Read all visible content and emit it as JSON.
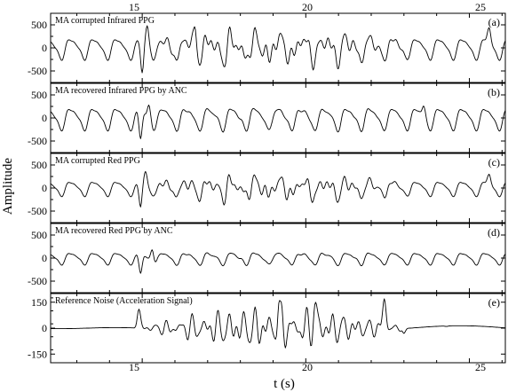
{
  "chart_data": {
    "type": "line",
    "xlabel": "t (s)",
    "ylabel": "Amplitude",
    "x_range": [
      12.2,
      26.1
    ],
    "x_ticks": [
      15,
      20,
      25
    ],
    "x_tick_labels": [
      "15",
      "20",
      "25"
    ],
    "grid": false,
    "legend": "none",
    "panels": [
      {
        "id": "a",
        "title": "MA corrupted Infrared PPG",
        "tag": "(a)",
        "ylim": [
          -750,
          750
        ],
        "y_ticks": [
          -500,
          0,
          500
        ],
        "y_tick_labels": [
          "-500",
          "0",
          "500"
        ],
        "signal": {
          "sample_rate_hz": 40,
          "hr_hz": 1.42,
          "ppg_amp": 230,
          "ma_amp": 260,
          "noisy": true,
          "seed": 7
        },
        "features": [
          {
            "t": 15.0,
            "y": -550
          },
          {
            "t": 15.15,
            "y": 480
          },
          {
            "t": 16.6,
            "y": 460
          },
          {
            "t": 25.6,
            "y": 440
          }
        ]
      },
      {
        "id": "b",
        "title": "MA recovered Infrared PPG by ANC",
        "tag": "(b)",
        "ylim": [
          -750,
          750
        ],
        "y_ticks": [
          -500,
          0,
          500
        ],
        "y_tick_labels": [
          "-500",
          "0",
          "500"
        ],
        "signal": {
          "sample_rate_hz": 40,
          "hr_hz": 1.42,
          "ppg_amp": 240,
          "ma_amp": 40,
          "noisy": false,
          "seed": 11
        },
        "features": [
          {
            "t": 14.95,
            "y": -450
          },
          {
            "t": 15.2,
            "y": 280
          },
          {
            "t": 23.6,
            "y": 260
          }
        ]
      },
      {
        "id": "c",
        "title": "MA corrupted Red PPG",
        "tag": "(c)",
        "ylim": [
          -750,
          750
        ],
        "y_ticks": [
          -500,
          0,
          500
        ],
        "y_tick_labels": [
          "-500",
          "0",
          "500"
        ],
        "signal": {
          "sample_rate_hz": 40,
          "hr_hz": 1.42,
          "ppg_amp": 160,
          "ma_amp": 200,
          "noisy": true,
          "seed": 19
        },
        "features": [
          {
            "t": 14.95,
            "y": -420
          },
          {
            "t": 15.1,
            "y": 360
          },
          {
            "t": 25.6,
            "y": 300
          }
        ]
      },
      {
        "id": "d",
        "title": "MA recovered Red PPG by ANC",
        "tag": "(d)",
        "ylim": [
          -750,
          750
        ],
        "y_ticks": [
          -500,
          0,
          500
        ],
        "y_tick_labels": [
          "-500",
          "0",
          "500"
        ],
        "signal": {
          "sample_rate_hz": 40,
          "hr_hz": 1.42,
          "ppg_amp": 130,
          "ma_amp": 30,
          "noisy": false,
          "seed": 23
        },
        "features": [
          {
            "t": 14.95,
            "y": -330
          },
          {
            "t": 15.3,
            "y": 180
          }
        ]
      },
      {
        "id": "e",
        "title": "Reference Noise (Acceleration Signal)",
        "tag": "(e)",
        "ylim": [
          -200,
          200
        ],
        "y_ticks": [
          -150,
          0,
          150
        ],
        "y_tick_labels": [
          "-150",
          "0",
          "150"
        ],
        "signal": {
          "sample_rate_hz": 40,
          "kind": "acceleration",
          "burst_start": 14.75,
          "burst_end": 23.2,
          "burst_amp": 110,
          "seed": 31
        },
        "features": [
          {
            "t": 14.9,
            "y": 110
          },
          {
            "t": 19.2,
            "y": 160
          },
          {
            "t": 20.3,
            "y": 150
          },
          {
            "t": 22.4,
            "y": 170
          },
          {
            "t": 23.0,
            "y": -30
          },
          {
            "t": 24.3,
            "y": 10
          }
        ]
      }
    ]
  }
}
